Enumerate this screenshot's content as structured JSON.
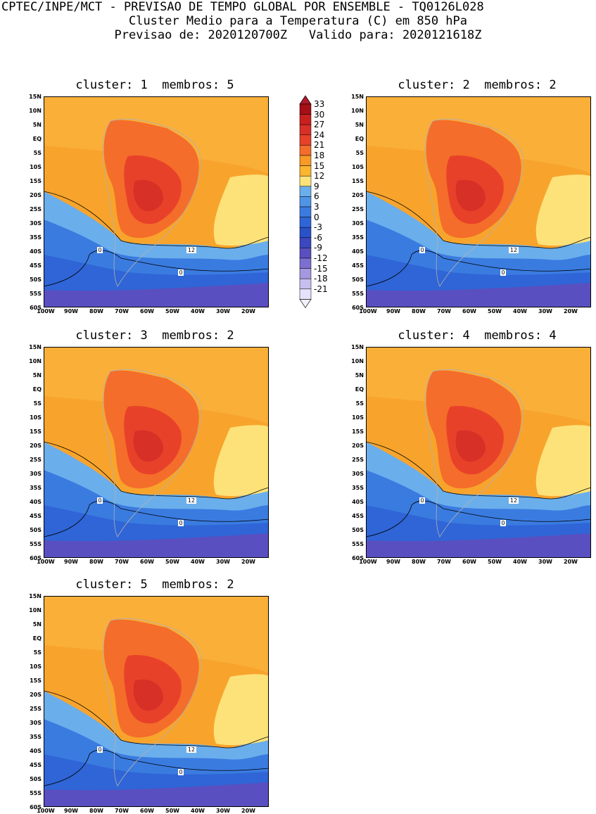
{
  "header": {
    "line1": "CPTEC/INPE/MCT - PREVISAO DE TEMPO GLOBAL POR ENSEMBLE - TQ0126L028",
    "line2": "Cluster Medio para a Temperatura (C) em 850 hPa",
    "line3": "Previsao de: 2020120700Z   Valido para: 2020121618Z"
  },
  "panels": [
    {
      "title": "cluster: 1  membros: 5",
      "label12": "12",
      "label0a": "0",
      "label0b": "0"
    },
    {
      "title": "cluster: 2  membros: 2",
      "label12": "12",
      "label0a": "0",
      "label0b": "0"
    },
    {
      "title": "cluster: 3  membros: 2",
      "label12": "12",
      "label0a": "0",
      "label0b": "0"
    },
    {
      "title": "cluster: 4  membros: 4",
      "label12": "12",
      "label0a": "0",
      "label0b": "0"
    },
    {
      "title": "cluster: 5  membros: 2",
      "label12": "12",
      "label0a": "0",
      "label0b": "0"
    }
  ],
  "lat_ticks": [
    "15N",
    "10N",
    "5N",
    "EQ",
    "5S",
    "10S",
    "15S",
    "20S",
    "25S",
    "30S",
    "35S",
    "40S",
    "45S",
    "50S",
    "55S",
    "60S"
  ],
  "lon_ticks": [
    "100W",
    "90W",
    "80W",
    "70W",
    "60W",
    "50W",
    "40W",
    "30W",
    "20W"
  ],
  "colorbar": {
    "labels": [
      "33",
      "30",
      "27",
      "24",
      "21",
      "18",
      "15",
      "12",
      "9",
      "6",
      "3",
      "0",
      "-3",
      "-6",
      "-9",
      "-12",
      "-15",
      "-18",
      "-21"
    ],
    "colors": [
      "#a50f15",
      "#c8201f",
      "#d73027",
      "#e8412a",
      "#f46d2a",
      "#f89a28",
      "#fbb52e",
      "#fde27a",
      "#6aaeec",
      "#4f94e6",
      "#3a7be0",
      "#2f65d6",
      "#2a52c8",
      "#3b48c0",
      "#5a4fc0",
      "#7d6fd0",
      "#a597e0",
      "#c8bff0",
      "#e6e0fa"
    ],
    "top_color": "#b2182b",
    "bottom_color": "#f2eefc"
  },
  "colors": {
    "warm_main": "#f8a42c",
    "warm_light": "#fbb845",
    "hot1": "#f46d2a",
    "hot2": "#e8412a",
    "hot3": "#d73027",
    "yellow": "#fde27a",
    "blue_light": "#6aaeec",
    "blue_mid": "#3a7be0",
    "blue_deep": "#2f65d6",
    "purple": "#5a4fc0"
  }
}
